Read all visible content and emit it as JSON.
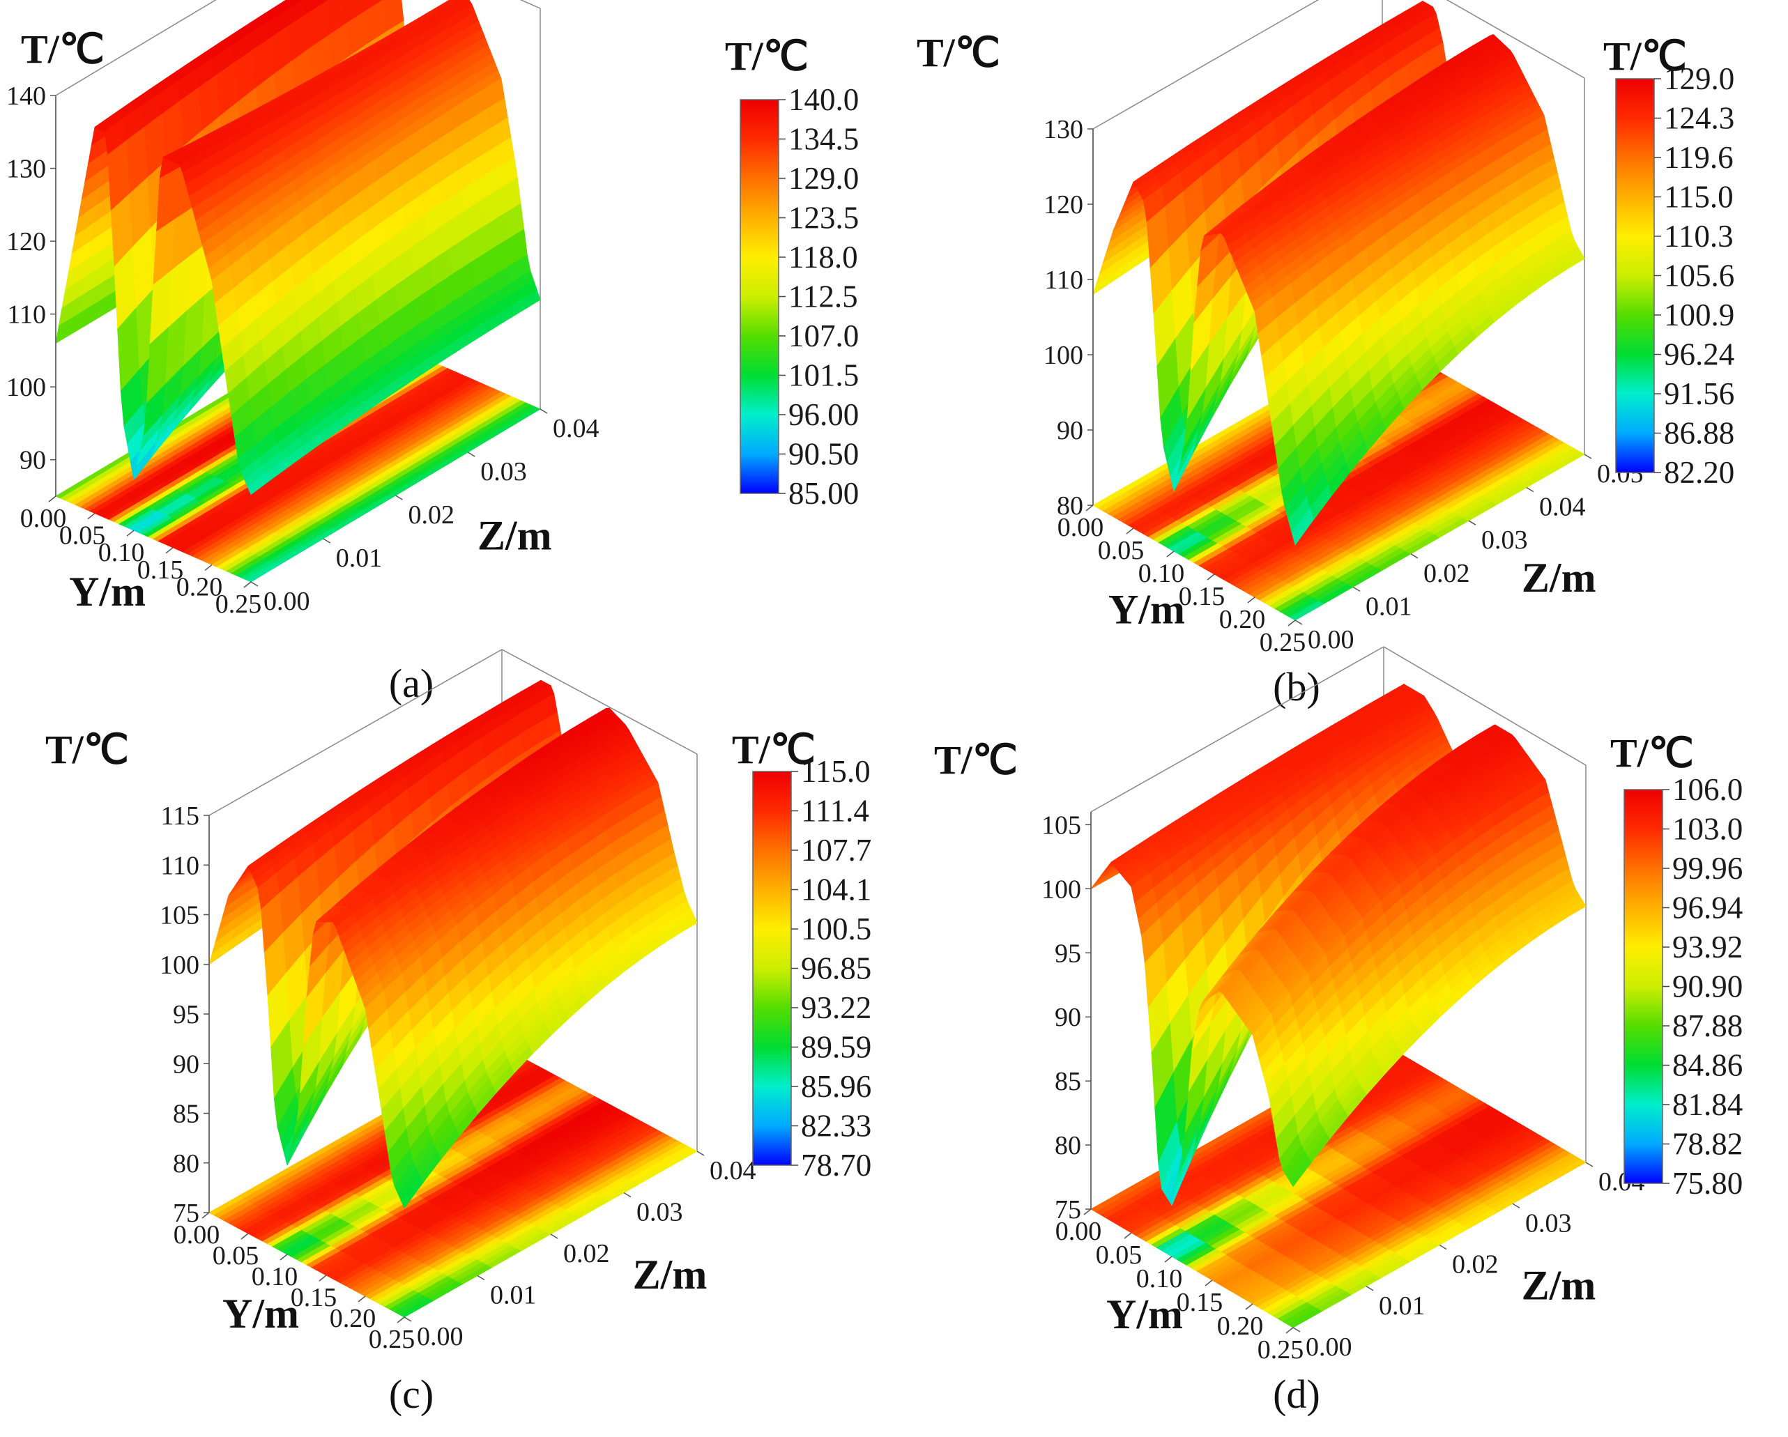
{
  "chart_data": [
    {
      "panel_label": "(a)",
      "type": "surface3d",
      "z_axis_label": "T/℃",
      "x_axis_label": "Y/m",
      "y_axis_label": "Z/m",
      "z_ticks": [
        "90",
        "100",
        "110",
        "120",
        "130",
        "140"
      ],
      "x_ticks": [
        "0.00",
        "0.05",
        "0.10",
        "0.15",
        "0.20",
        "0.25"
      ],
      "y_ticks": [
        "0.00",
        "0.01",
        "0.02",
        "0.03",
        "0.04"
      ],
      "zlim": [
        85,
        140
      ],
      "colorbar_title": "T/℃",
      "colorbar_ticks": [
        "140.0",
        "134.5",
        "129.0",
        "123.5",
        "118.0",
        "112.5",
        "107.0",
        "101.5",
        "96.00",
        "90.50",
        "85.00"
      ],
      "profile_y": [
        0.0,
        0.025,
        0.05,
        0.065,
        0.075,
        0.085,
        0.1,
        0.115,
        0.125,
        0.135,
        0.16,
        0.2,
        0.22,
        0.235,
        0.25
      ],
      "profile_T_near_face": [
        106,
        122,
        138,
        138,
        120,
        100,
        92,
        100,
        120,
        138,
        138,
        124,
        110,
        100,
        97
      ],
      "profile_T_far_face": [
        106,
        124,
        140,
        140,
        130,
        112,
        106,
        110,
        124,
        136,
        137,
        128,
        116,
        104,
        100
      ]
    },
    {
      "panel_label": "(b)",
      "type": "surface3d",
      "z_axis_label": "T/℃",
      "x_axis_label": "Y/m",
      "y_axis_label": "Z/m",
      "z_ticks": [
        "80",
        "90",
        "100",
        "110",
        "120",
        "130"
      ],
      "x_ticks": [
        "0.00",
        "0.05",
        "0.10",
        "0.15",
        "0.20",
        "0.25"
      ],
      "y_ticks": [
        "0.00",
        "0.01",
        "0.02",
        "0.03",
        "0.04",
        "0.05"
      ],
      "zlim": [
        80,
        130
      ],
      "colorbar_title": "T/℃",
      "colorbar_ticks": [
        "129.0",
        "124.3",
        "119.6",
        "115.0",
        "110.3",
        "105.6",
        "100.9",
        "96.24",
        "91.56",
        "86.88",
        "82.20"
      ],
      "profile_y": [
        0.0,
        0.025,
        0.05,
        0.065,
        0.075,
        0.085,
        0.1,
        0.115,
        0.125,
        0.135,
        0.16,
        0.2,
        0.22,
        0.235,
        0.25
      ],
      "profile_T_near_face": [
        108,
        118,
        126,
        124,
        110,
        94,
        88,
        96,
        112,
        124,
        126,
        118,
        105,
        95,
        90
      ],
      "profile_T_far_face": [
        110,
        120,
        128,
        128,
        124,
        118,
        116,
        120,
        126,
        129,
        128,
        122,
        114,
        108,
        106
      ]
    },
    {
      "panel_label": "(c)",
      "type": "surface3d",
      "z_axis_label": "T/℃",
      "x_axis_label": "Y/m",
      "y_axis_label": "Z/m",
      "z_ticks": [
        "75",
        "80",
        "85",
        "90",
        "95",
        "100",
        "105",
        "110",
        "115"
      ],
      "x_ticks": [
        "0.00",
        "0.05",
        "0.10",
        "0.15",
        "0.20",
        "0.25"
      ],
      "y_ticks": [
        "0.00",
        "0.01",
        "0.02",
        "0.03",
        "0.04"
      ],
      "zlim": [
        75,
        115
      ],
      "colorbar_title": "T/℃",
      "colorbar_ticks": [
        "115.0",
        "111.4",
        "107.7",
        "104.1",
        "100.5",
        "96.85",
        "93.22",
        "89.59",
        "85.96",
        "82.33",
        "78.70"
      ],
      "profile_y": [
        0.0,
        0.025,
        0.05,
        0.065,
        0.075,
        0.085,
        0.1,
        0.115,
        0.125,
        0.135,
        0.16,
        0.2,
        0.22,
        0.235,
        0.25
      ],
      "profile_T_near_face": [
        100,
        108,
        112,
        110,
        100,
        88,
        84,
        90,
        102,
        110,
        111,
        104,
        95,
        88,
        86
      ],
      "profile_T_far_face": [
        102,
        110,
        114,
        114,
        110,
        106,
        104,
        108,
        113,
        115,
        114,
        110,
        104,
        100,
        98
      ]
    },
    {
      "panel_label": "(d)",
      "type": "surface3d",
      "z_axis_label": "T/℃",
      "x_axis_label": "Y/m",
      "y_axis_label": "Z/m",
      "z_ticks": [
        "75",
        "80",
        "85",
        "90",
        "95",
        "100",
        "105"
      ],
      "x_ticks": [
        "0.00",
        "0.05",
        "0.10",
        "0.15",
        "0.20",
        "0.25"
      ],
      "y_ticks": [
        "0.00",
        "0.01",
        "0.02",
        "0.03",
        "0.04"
      ],
      "zlim": [
        75,
        106
      ],
      "colorbar_title": "T/℃",
      "colorbar_ticks": [
        "106.0",
        "103.0",
        "99.96",
        "96.94",
        "93.92",
        "90.90",
        "87.88",
        "84.86",
        "81.84",
        "78.82",
        "75.80"
      ],
      "profile_y": [
        0.0,
        0.025,
        0.05,
        0.065,
        0.075,
        0.085,
        0.1,
        0.115,
        0.125,
        0.135,
        0.16,
        0.2,
        0.22,
        0.235,
        0.25
      ],
      "profile_T_near_face": [
        100,
        103,
        102,
        98,
        90,
        80,
        79,
        84,
        92,
        96,
        98,
        96,
        92,
        87,
        86
      ],
      "profile_T_far_face": [
        100,
        104,
        104,
        103,
        102,
        101,
        100,
        101,
        103,
        105,
        105,
        103,
        99,
        96,
        95
      ]
    }
  ],
  "colors": {
    "colormap": [
      "#0000ff",
      "#00aaff",
      "#00eecc",
      "#00dd33",
      "#55dd00",
      "#ccee00",
      "#ffee00",
      "#ffb000",
      "#ff7000",
      "#ff2a00",
      "#ee0000"
    ]
  }
}
